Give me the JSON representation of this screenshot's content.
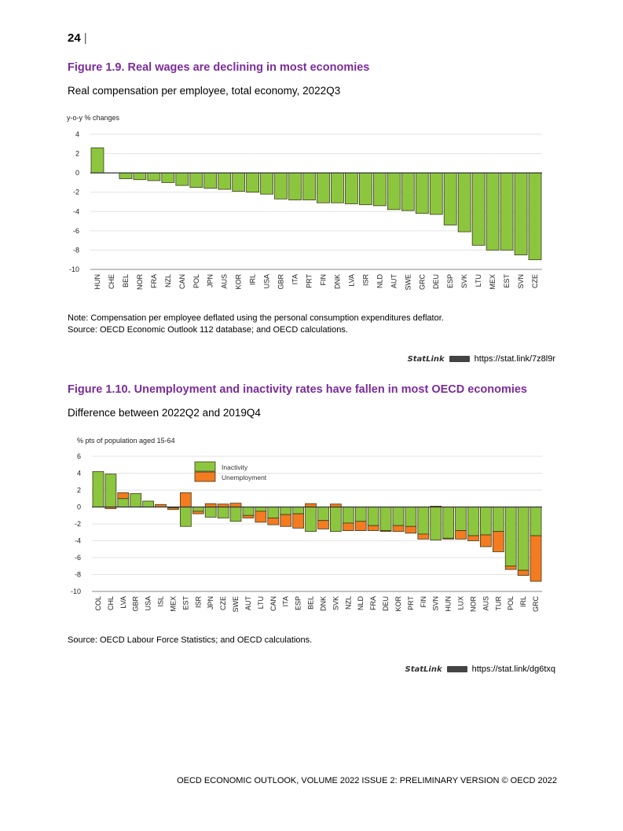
{
  "page_number": "24",
  "footer": "OECD ECONOMIC OUTLOOK, VOLUME 2022 ISSUE 2: PRELIMINARY VERSION © OECD 2022",
  "colors": {
    "green": "#8cc63f",
    "orange": "#f47b20",
    "title": "#7b2c98"
  },
  "figure1": {
    "title": "Figure 1.9. Real wages are declining in most economies",
    "subtitle": "Real compensation per employee, total economy, 2022Q3",
    "note": "Note: Compensation per employee deflated using the personal consumption expenditures deflator.",
    "source": "Source: OECD Economic Outlook 112 database; and OECD calculations.",
    "statlink_label": "StatLink",
    "statlink_url": "https://stat.link/7z8l9r"
  },
  "figure2": {
    "title": "Figure 1.10. Unemployment and inactivity rates have fallen in most OECD economies",
    "subtitle": "Difference between 2022Q2 and 2019Q4",
    "source": "Source: OECD Labour Force Statistics; and OECD calculations.",
    "statlink_label": "StatLink",
    "statlink_url": "https://stat.link/dg6txq"
  },
  "chart_data": [
    {
      "type": "bar",
      "ylabel": "y-o-y % changes",
      "ylim": [
        -10,
        4
      ],
      "yticks": [
        4,
        2,
        0,
        -2,
        -4,
        -6,
        -8,
        -10
      ],
      "grid": true,
      "categories": [
        "HUN",
        "CHE",
        "BEL",
        "NOR",
        "FRA",
        "NZL",
        "CAN",
        "POL",
        "JPN",
        "AUS",
        "KOR",
        "IRL",
        "USA",
        "GBR",
        "ITA",
        "PRT",
        "FIN",
        "DNK",
        "LVA",
        "ISR",
        "NLD",
        "AUT",
        "SWE",
        "GRC",
        "DEU",
        "ESP",
        "SVK",
        "LTU",
        "MEX",
        "EST",
        "SVN",
        "CZE"
      ],
      "values": [
        2.6,
        0,
        -0.6,
        -0.7,
        -0.8,
        -1.0,
        -1.3,
        -1.5,
        -1.6,
        -1.7,
        -1.9,
        -2.0,
        -2.2,
        -2.7,
        -2.8,
        -2.8,
        -3.1,
        -3.1,
        -3.2,
        -3.3,
        -3.4,
        -3.8,
        -3.9,
        -4.2,
        -4.3,
        -5.4,
        -6.1,
        -7.5,
        -8.0,
        -8.0,
        -8.5,
        -9.0
      ]
    },
    {
      "type": "bar",
      "stacked": true,
      "ylabel": "% pts of population aged 15-64",
      "ylim": [
        -10,
        6
      ],
      "yticks": [
        6,
        4,
        2,
        0,
        -2,
        -4,
        -6,
        -8,
        -10
      ],
      "grid": true,
      "legend_position": "top-center",
      "categories": [
        "COL",
        "CHL",
        "LVA",
        "GBR",
        "USA",
        "ISL",
        "MEX",
        "EST",
        "ISR",
        "JPN",
        "CZE",
        "SWE",
        "AUT",
        "LTU",
        "CAN",
        "ITA",
        "ESP",
        "BEL",
        "DNK",
        "SVK",
        "NZL",
        "NLD",
        "FRA",
        "DEU",
        "KOR",
        "PRT",
        "FIN",
        "SVN",
        "HUN",
        "LUX",
        "NOR",
        "AUS",
        "TUR",
        "POL",
        "IRL",
        "GRC"
      ],
      "series": [
        {
          "name": "Inactivity",
          "values": [
            4.2,
            3.9,
            1.0,
            1.6,
            0.7,
            0,
            -0.1,
            -2.3,
            -0.5,
            -1.2,
            -1.3,
            -1.7,
            -1.0,
            -0.5,
            -1.3,
            -0.9,
            -0.8,
            -2.9,
            -1.6,
            -2.9,
            -1.9,
            -1.7,
            -2.2,
            -2.8,
            -2.2,
            -2.3,
            -3.2,
            -3.9,
            -3.7,
            -2.8,
            -3.4,
            -3.3,
            -2.9,
            -7.0,
            -7.5,
            -3.4
          ]
        },
        {
          "name": "Unemployment",
          "values": [
            0,
            -0.2,
            0.7,
            0,
            0,
            0.3,
            -0.2,
            1.7,
            -0.3,
            0.4,
            0.35,
            0.45,
            -0.3,
            -1.3,
            -0.8,
            -1.4,
            -1.7,
            0.4,
            -1.0,
            0.35,
            -0.9,
            -1.1,
            -0.6,
            -0.1,
            -0.7,
            -0.8,
            -0.6,
            0.1,
            -0.1,
            -1.0,
            -0.6,
            -1.4,
            -2.4,
            -0.4,
            -0.6,
            -5.4
          ]
        }
      ]
    }
  ]
}
